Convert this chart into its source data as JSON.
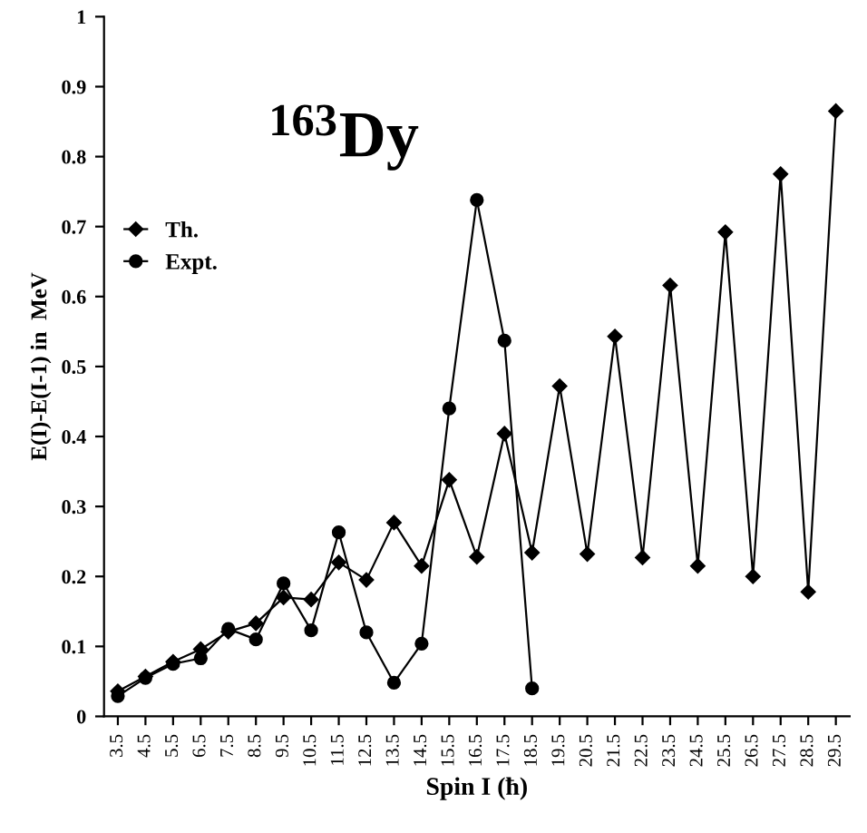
{
  "chart_data": {
    "type": "line",
    "xlabel": "Spin I (ħ)",
    "ylabel": "E(I)-E(I-1) in  MeV",
    "annotations": [
      "$^{163}$Dy"
    ],
    "categories": [
      "3.5",
      "4.5",
      "5.5",
      "6.5",
      "7.5",
      "8.5",
      "9.5",
      "10.5",
      "11.5",
      "12.5",
      "13.5",
      "14.5",
      "15.5",
      "16.5",
      "17.5",
      "18.5",
      "19.5",
      "20.5",
      "21.5",
      "22.5",
      "23.5",
      "24.5",
      "25.5",
      "26.5",
      "27.5",
      "28.5",
      "29.5"
    ],
    "series": [
      {
        "name": "Th.",
        "color": "#000000",
        "marker": "diamond",
        "values": [
          0.036,
          0.057,
          0.078,
          0.096,
          0.121,
          0.133,
          0.17,
          0.167,
          0.22,
          0.195,
          0.277,
          0.215,
          0.338,
          0.228,
          0.404,
          0.234,
          0.472,
          0.232,
          0.543,
          0.227,
          0.616,
          0.215,
          0.692,
          0.2,
          0.775,
          0.178,
          0.865
        ]
      },
      {
        "name": "Expt.",
        "color": "#000000",
        "marker": "circle",
        "values": [
          0.029,
          0.055,
          0.075,
          0.083,
          0.125,
          0.11,
          0.19,
          0.123,
          0.263,
          0.12,
          0.048,
          0.104,
          0.44,
          0.738,
          0.537,
          0.04,
          null,
          null,
          null,
          null,
          null,
          null,
          null,
          null,
          null,
          null,
          null
        ]
      }
    ],
    "ylim": [
      0,
      1
    ],
    "yticks": [
      0,
      0.1,
      0.2,
      0.3,
      0.4,
      0.5,
      0.6,
      0.7,
      0.8,
      0.9,
      1
    ],
    "grid": false,
    "legend": "center left",
    "line_style": "solid"
  }
}
